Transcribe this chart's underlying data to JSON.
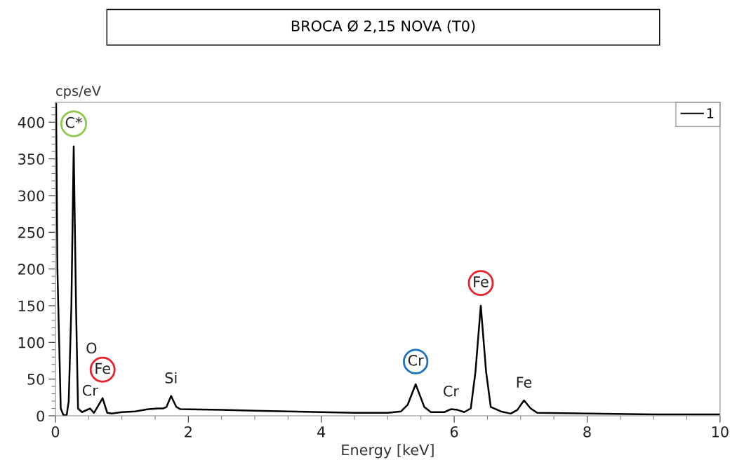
{
  "chart_data": {
    "type": "line",
    "title": "BROCA Ø 2,15 NOVA (T0)",
    "xlabel": "Energy [keV]",
    "ylabel": "cps/eV",
    "x": [
      0.01,
      0.03,
      0.08,
      0.12,
      0.17,
      0.2,
      0.24,
      0.275,
      0.31,
      0.34,
      0.4,
      0.52,
      0.58,
      0.71,
      0.78,
      0.85,
      1.0,
      1.2,
      1.4,
      1.55,
      1.62,
      1.67,
      1.74,
      1.82,
      1.88,
      2.5,
      3.0,
      3.5,
      4.0,
      4.5,
      5.0,
      5.2,
      5.3,
      5.42,
      5.55,
      5.65,
      5.85,
      5.95,
      6.05,
      6.15,
      6.25,
      6.32,
      6.4,
      6.48,
      6.55,
      6.7,
      6.85,
      6.95,
      7.05,
      7.15,
      7.25,
      8.0,
      9.0,
      10.0
    ],
    "series": [
      {
        "name": "1",
        "color": "#000000",
        "values": [
          425,
          200,
          10,
          1,
          1,
          20,
          150,
          367,
          150,
          10,
          5,
          10,
          4,
          24,
          4,
          3,
          5,
          6,
          9,
          10,
          10,
          12,
          27,
          12,
          9,
          8,
          7,
          6,
          5,
          4,
          4,
          6,
          15,
          43,
          12,
          5,
          5,
          9,
          8,
          5,
          10,
          60,
          150,
          60,
          12,
          6,
          3,
          8,
          21,
          10,
          4,
          3,
          2,
          2
        ]
      }
    ],
    "xlim": [
      0,
      10
    ],
    "ylim": [
      0,
      427
    ],
    "xticks": [
      0,
      {
        "value": 0.5,
        "label": null
      },
      {
        "value": 1,
        "label": null
      },
      {
        "value": 1.5,
        "label": null
      },
      2,
      {
        "value": 2.5,
        "label": null
      },
      {
        "value": 3,
        "label": null
      },
      {
        "value": 3.5,
        "label": null
      },
      4,
      {
        "value": 4.5,
        "label": null
      },
      {
        "value": 5,
        "label": null
      },
      {
        "value": 5.5,
        "label": null
      },
      6,
      {
        "value": 6.5,
        "label": null
      },
      {
        "value": 7,
        "label": null
      },
      {
        "value": 7.5,
        "label": null
      },
      8,
      {
        "value": 8.5,
        "label": null
      },
      {
        "value": 9,
        "label": null
      },
      {
        "value": 9.5,
        "label": null
      },
      10
    ],
    "yticks": [
      0,
      {
        "value": 10,
        "label": null
      },
      {
        "value": 20,
        "label": null
      },
      {
        "value": 30,
        "label": null
      },
      {
        "value": 40,
        "label": null
      },
      50,
      {
        "value": 60,
        "label": null
      },
      {
        "value": 70,
        "label": null
      },
      {
        "value": 80,
        "label": null
      },
      {
        "value": 90,
        "label": null
      },
      100,
      {
        "value": 110,
        "label": null
      },
      {
        "value": 120,
        "label": null
      },
      {
        "value": 130,
        "label": null
      },
      {
        "value": 140,
        "label": null
      },
      150,
      {
        "value": 160,
        "label": null
      },
      {
        "value": 170,
        "label": null
      },
      {
        "value": 180,
        "label": null
      },
      {
        "value": 190,
        "label": null
      },
      200,
      {
        "value": 210,
        "label": null
      },
      {
        "value": 220,
        "label": null
      },
      {
        "value": 230,
        "label": null
      },
      {
        "value": 240,
        "label": null
      },
      250,
      {
        "value": 260,
        "label": null
      },
      {
        "value": 270,
        "label": null
      },
      {
        "value": 280,
        "label": null
      },
      {
        "value": 290,
        "label": null
      },
      300,
      {
        "value": 310,
        "label": null
      },
      {
        "value": 320,
        "label": null
      },
      {
        "value": 330,
        "label": null
      },
      {
        "value": 340,
        "label": null
      },
      350,
      {
        "value": 360,
        "label": null
      },
      {
        "value": 370,
        "label": null
      },
      {
        "value": 380,
        "label": null
      },
      {
        "value": 390,
        "label": null
      },
      400,
      {
        "value": 410,
        "label": null
      },
      {
        "value": 420,
        "label": null
      }
    ],
    "annotations": [
      {
        "text": "C*",
        "x": 0.275,
        "y": 367
      },
      {
        "text": "Cr",
        "x": 0.52,
        "y": 10
      },
      {
        "text": "Fe",
        "x": 0.71,
        "y": 24
      },
      "O",
      {
        "text": "Si",
        "x": 1.74,
        "y": 27
      },
      {
        "text": "Cr",
        "x": 5.42,
        "y": 43
      },
      {
        "text": "Cr",
        "x": 5.95,
        "y": 9
      },
      {
        "text": "Fe",
        "x": 6.4,
        "y": 150
      },
      {
        "text": "Fe",
        "x": 7.05,
        "y": 21
      }
    ],
    "grid": false,
    "legend": "top right",
    "marker": "none",
    "line_style": "solid"
  }
}
